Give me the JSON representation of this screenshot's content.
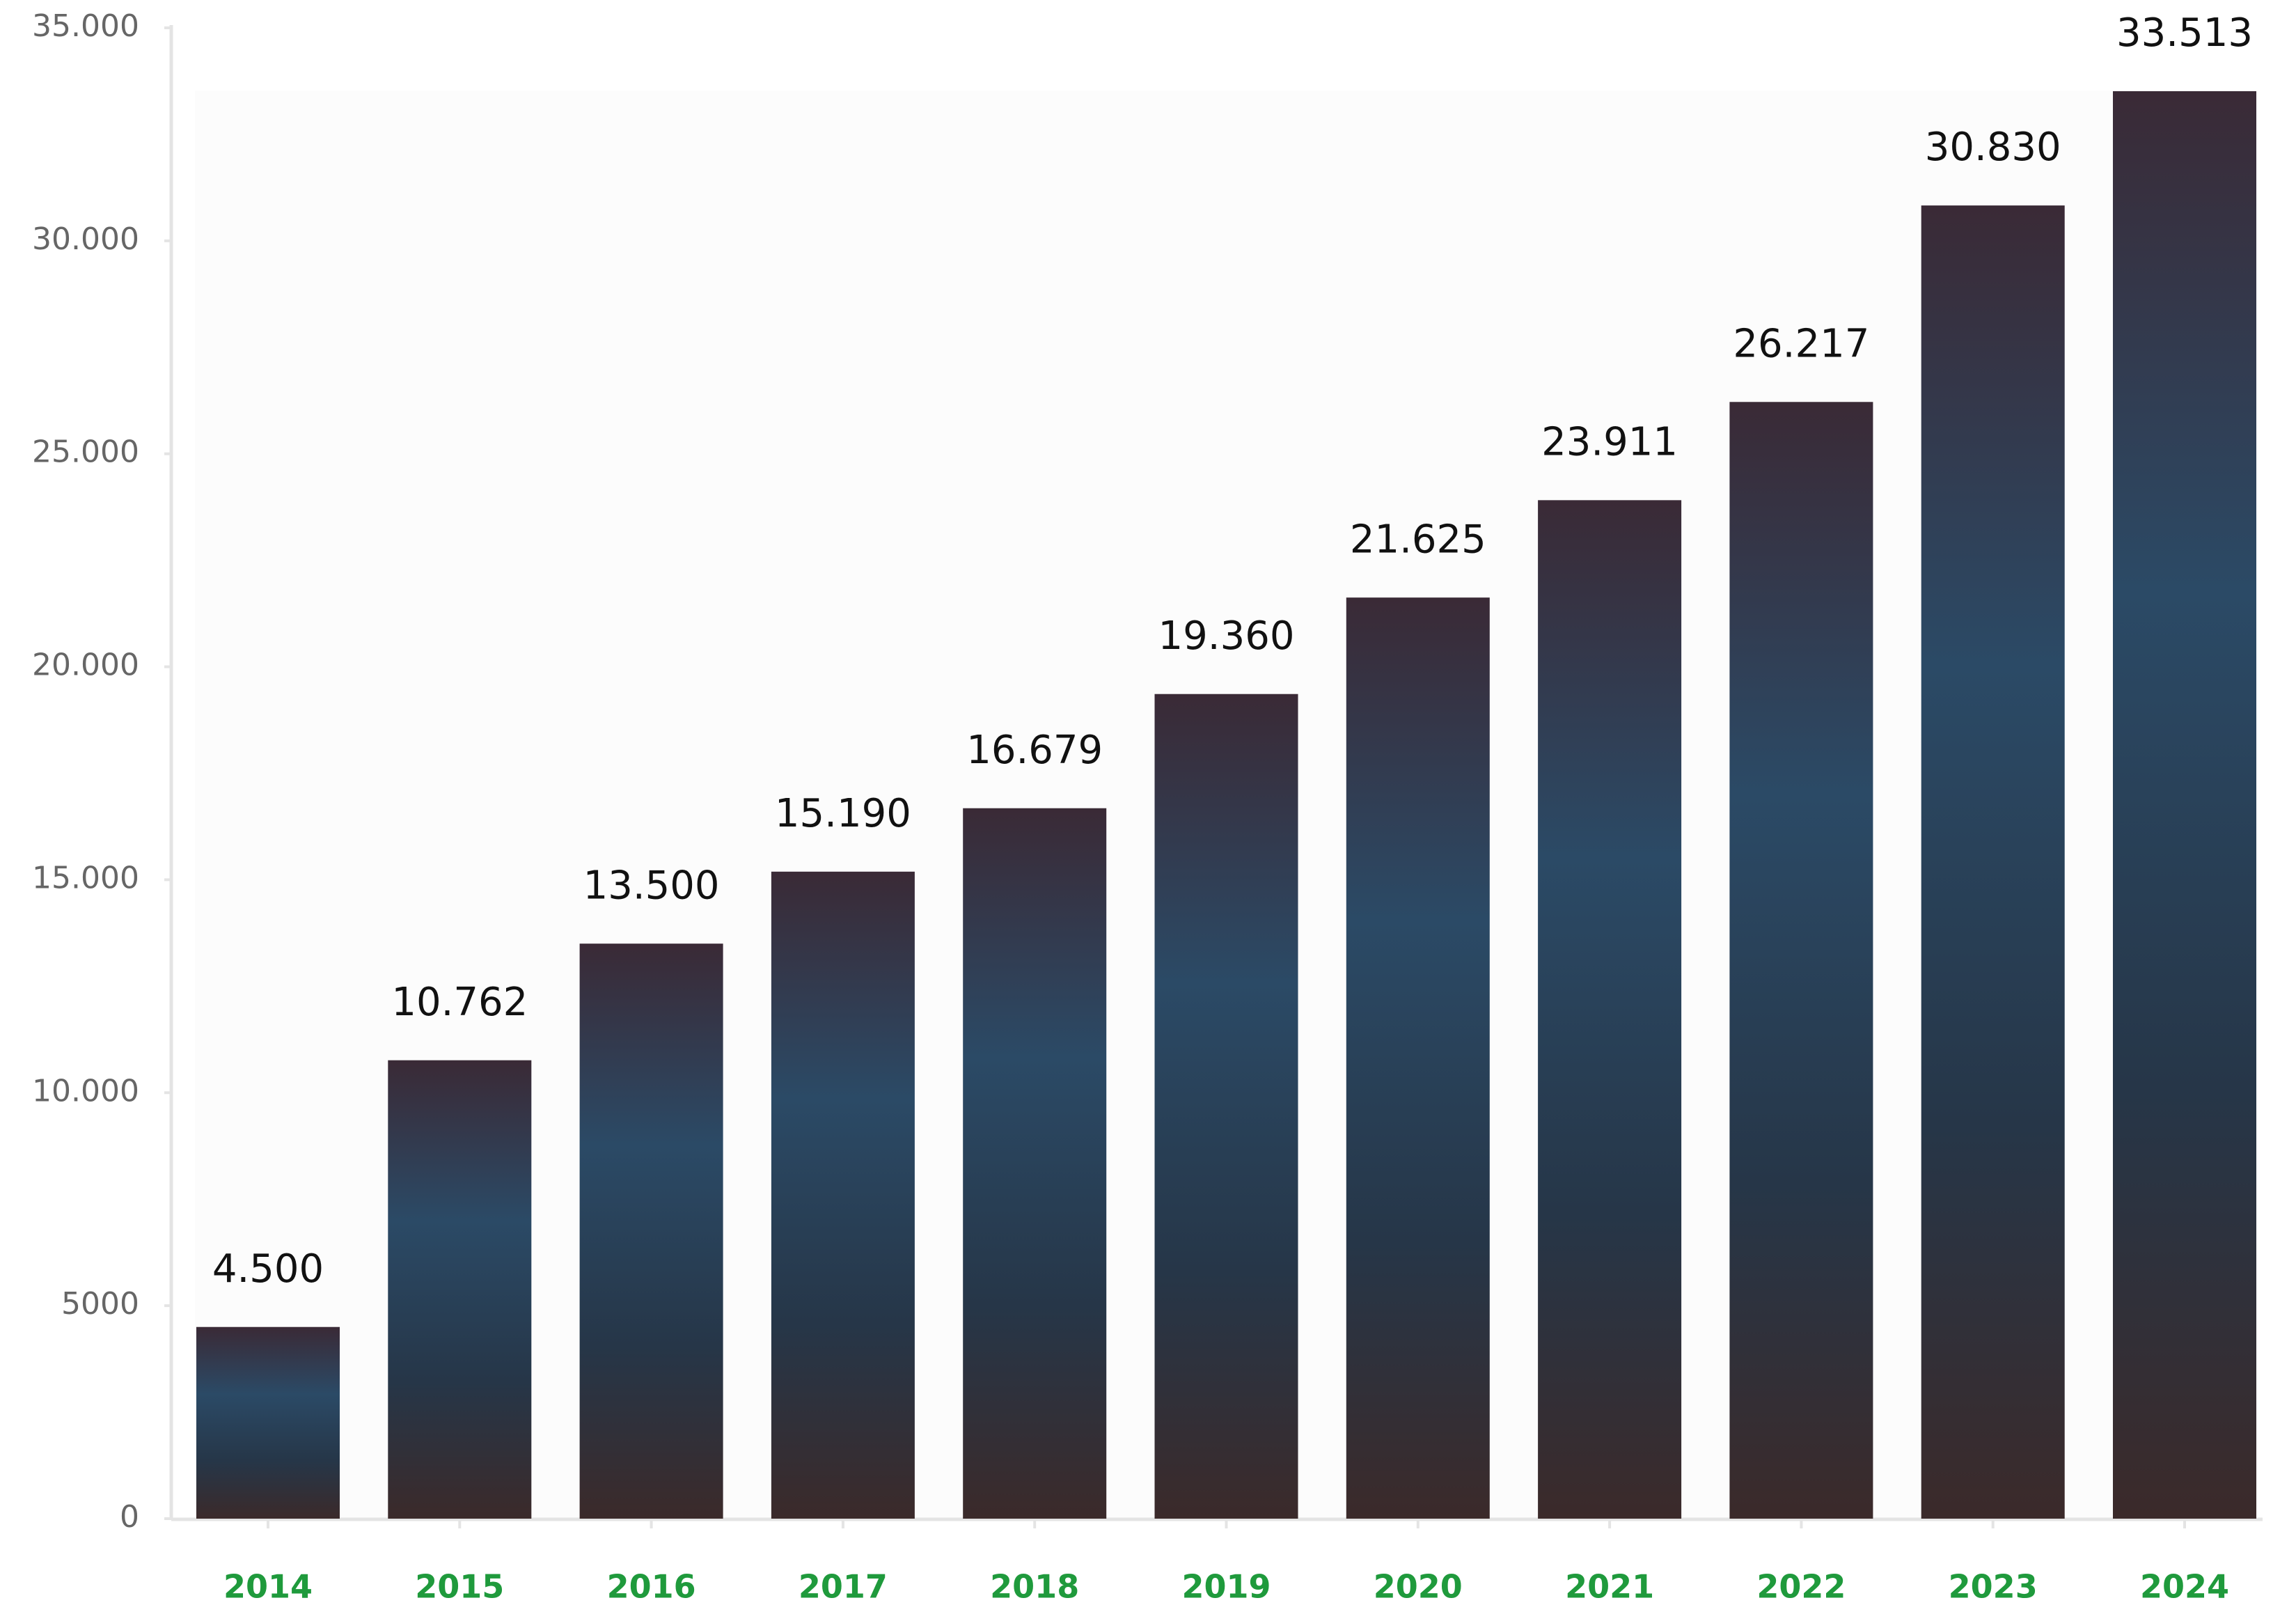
{
  "chart_data": {
    "type": "bar",
    "categories": [
      "2014",
      "2015",
      "2016",
      "2017",
      "2018",
      "2019",
      "2020",
      "2021",
      "2022",
      "2023",
      "2024"
    ],
    "values": [
      4500,
      10762,
      13500,
      15190,
      16679,
      19360,
      21625,
      23911,
      26217,
      30830,
      33513
    ],
    "value_labels": [
      "4.500",
      "10.762",
      "13.500",
      "15.190",
      "16.679",
      "19.360",
      "21.625",
      "23.911",
      "26.217",
      "30.830",
      "33.513"
    ],
    "ylim": [
      0,
      35000
    ],
    "yticks": [
      0,
      5000,
      {
        "value": 10000,
        "label": "10.000"
      },
      {
        "value": 15000,
        "label": "15.000"
      },
      {
        "value": 20000,
        "label": "20.000"
      },
      {
        "value": 25000,
        "label": "25.000"
      },
      {
        "value": 30000,
        "label": "30.000"
      },
      {
        "value": 35000,
        "label": "35.000"
      }
    ],
    "grid": false,
    "category_color": "#1f9a3c"
  }
}
